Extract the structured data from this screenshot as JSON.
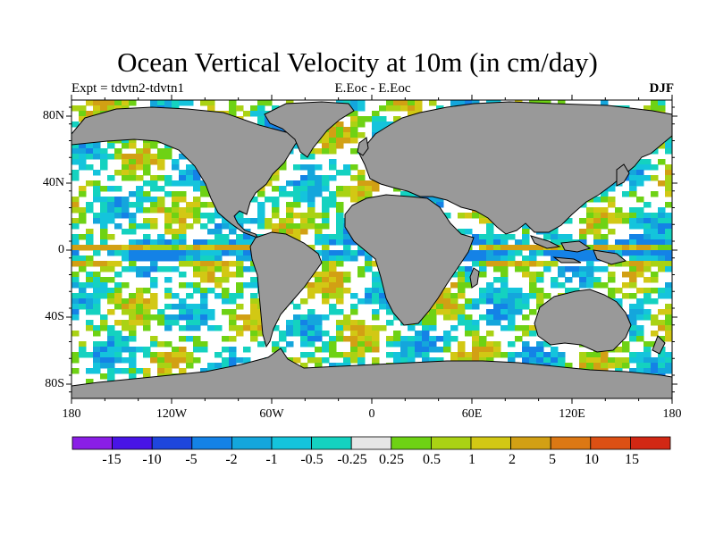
{
  "title": "Ocean Vertical Velocity at 10m (in cm/day)",
  "left_subtitle": "Expt = tdvtn2-tdvtn1",
  "center_subtitle": "E.Eoc - E.Eoc",
  "right_subtitle": "DJF",
  "y_axis_labels": [
    "80N",
    "40N",
    "0",
    "40S",
    "80S"
  ],
  "x_axis_labels": [
    "180",
    "120W",
    "60W",
    "0",
    "60E",
    "120E",
    "180"
  ],
  "colorbar": {
    "labels": [
      "-15",
      "-10",
      "-5",
      "-2",
      "-1",
      "-0.5",
      "-0.25",
      "0.25",
      "0.5",
      "1",
      "2",
      "5",
      "10",
      "15"
    ],
    "colors": [
      "#8a1ee6",
      "#4814e6",
      "#1e46dc",
      "#1482e6",
      "#14a6dc",
      "#14c4dc",
      "#14d2c0",
      "#e6e6e6",
      "#6ed214",
      "#aad214",
      "#d2c814",
      "#d2a014",
      "#dc7814",
      "#dc5014",
      "#d22814"
    ]
  },
  "colors": {
    "land": "#999999",
    "background": "#ffffff"
  }
}
